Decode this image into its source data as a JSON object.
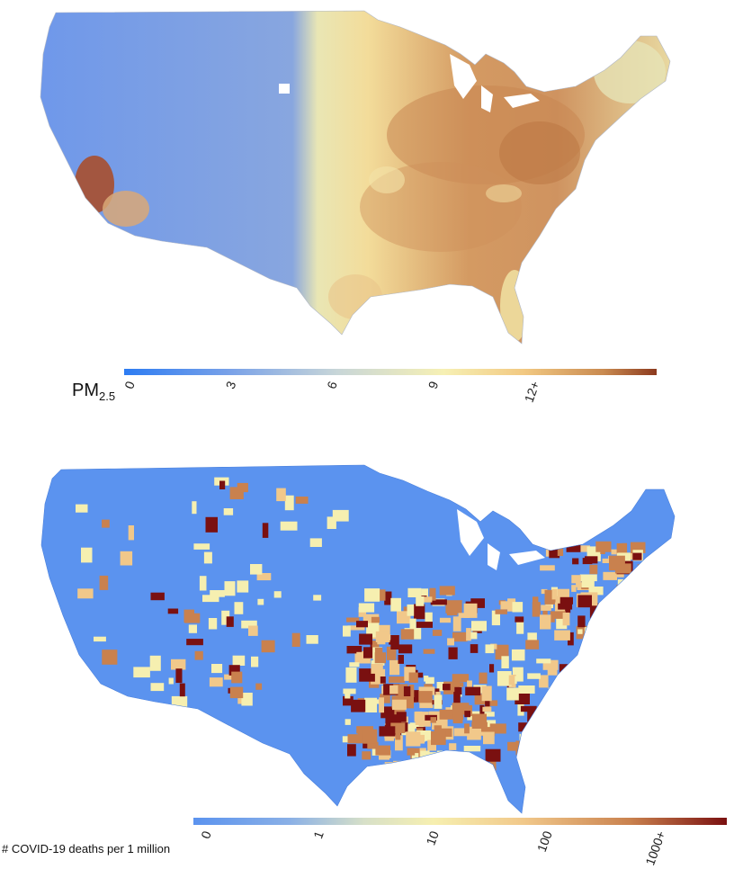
{
  "pm25_map": {
    "legend_title_main": "PM",
    "legend_title_sub": "2.5",
    "ticks": [
      {
        "value": 0,
        "label": "0"
      },
      {
        "value": 3,
        "label": "3"
      },
      {
        "value": 6,
        "label": "6"
      },
      {
        "value": 9,
        "label": "9"
      },
      {
        "value": 12,
        "label": "12+"
      }
    ],
    "scale_range": [
      0,
      15
    ],
    "colors": [
      "#2d7cf2",
      "#7aa2e8",
      "#c8d6d8",
      "#f6f0b4",
      "#f2c982",
      "#c98a50",
      "#8c3a1e"
    ]
  },
  "covid_map": {
    "legend_title": "# COVID-19 deaths per 1 million",
    "scale": "log",
    "ticks": [
      {
        "value": 0,
        "label": "0"
      },
      {
        "value": 1,
        "label": "1"
      },
      {
        "value": 10,
        "label": "10"
      },
      {
        "value": 100,
        "label": "100"
      },
      {
        "value": 1000,
        "label": "1000+"
      }
    ],
    "colors": [
      "#5b93ef",
      "#8ab0e6",
      "#d7e0c8",
      "#f6efb0",
      "#f1c88a",
      "#c9814e",
      "#7a1010"
    ]
  }
}
